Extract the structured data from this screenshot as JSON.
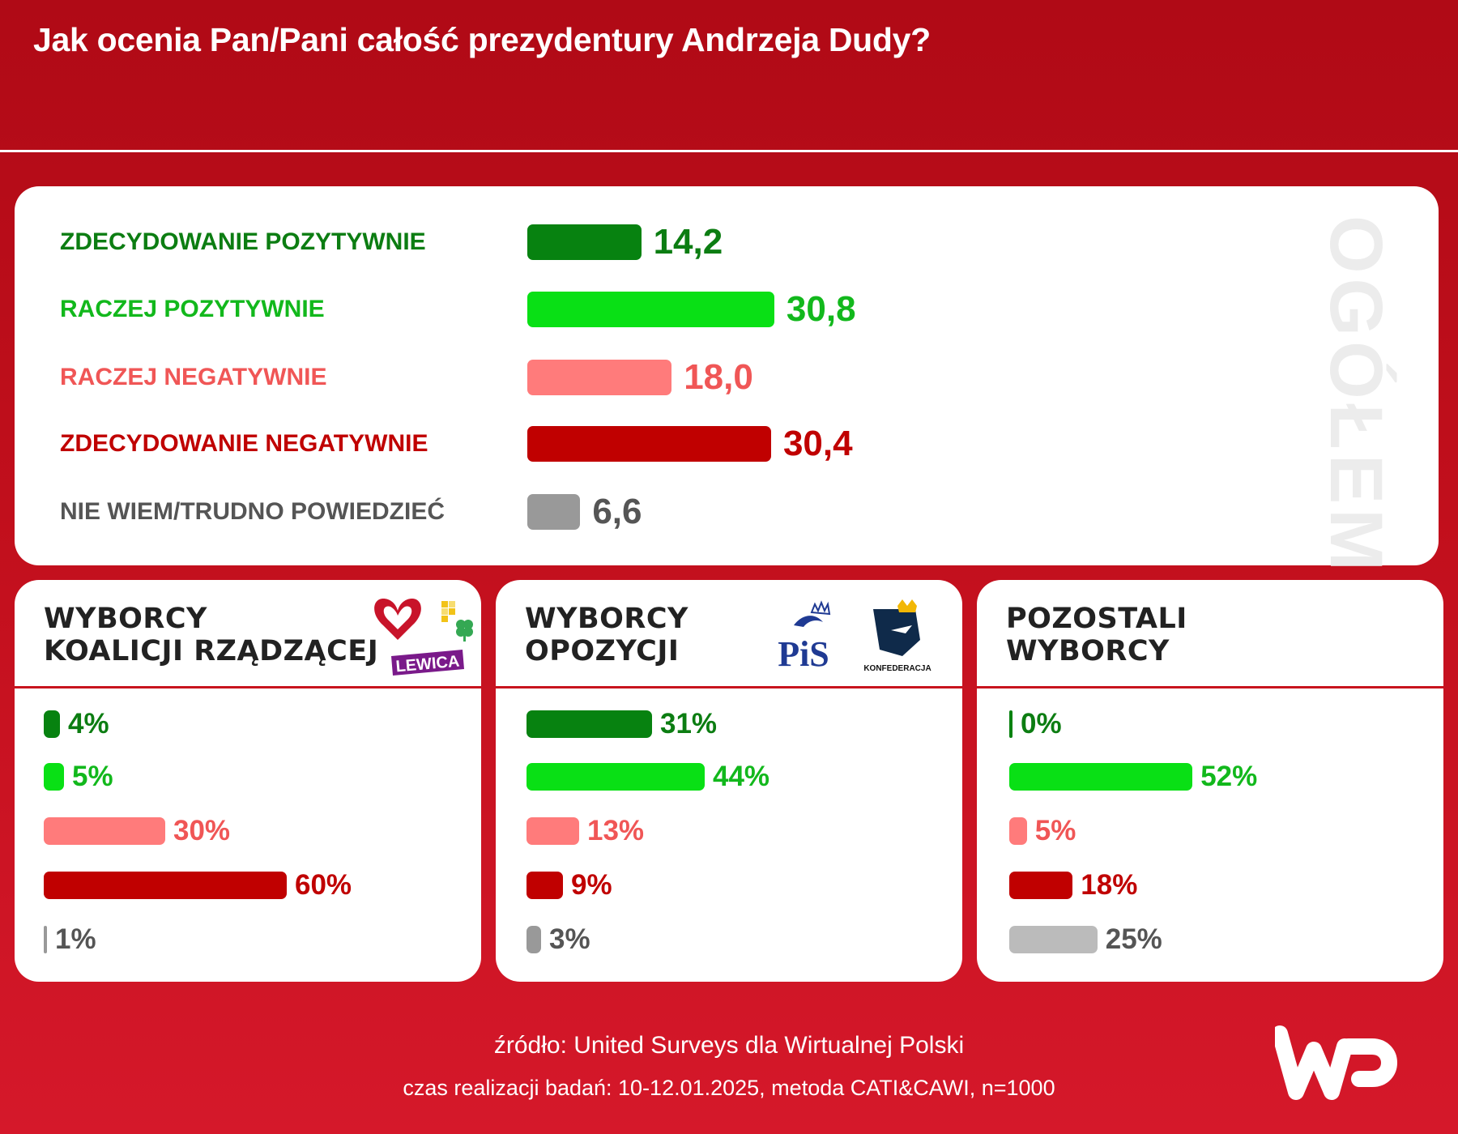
{
  "title": "Jak ocenia Pan/Pani całość prezydentury Andrzeja Dudy?",
  "overall_label": "OGÓŁEM",
  "colors": {
    "dark_green": "#078210",
    "light_green": "#09e015",
    "light_red": "#ff7b7b",
    "dark_red": "#c00000",
    "gray": "#999999",
    "light_gray": "#bbbbbb",
    "brand_red": "#c8141e"
  },
  "text_colors": {
    "dark_green": "#0c7d12",
    "light_green": "#12b81c",
    "light_red": "#f05656",
    "dark_red": "#c00000",
    "gray": "#555555"
  },
  "chart_data": [
    {
      "type": "bar",
      "orientation": "horizontal",
      "title": "OGÓŁEM",
      "categories": [
        "ZDECYDOWANIE POZYTYWNIE",
        "RACZEJ POZYTYWNIE",
        "RACZEJ NEGATYWNIE",
        "ZDECYDOWANIE NEGATYWNIE",
        "NIE WIEM/TRUDNO POWIEDZIEĆ"
      ],
      "values": [
        14.2,
        30.8,
        18.0,
        30.4,
        6.6
      ],
      "value_labels": [
        "14,2",
        "30,8",
        "18,0",
        "30,4",
        "6,6"
      ]
    },
    {
      "type": "bar",
      "orientation": "horizontal",
      "title": "WYBORCY KOALICJI RZĄDZĄCEJ",
      "categories": [
        "ZDECYDOWANIE POZYTYWNIE",
        "RACZEJ POZYTYWNIE",
        "RACZEJ NEGATYWNIE",
        "ZDECYDOWANIE NEGATYWNIE",
        "NIE WIEM/TRUDNO POWIEDZIEĆ"
      ],
      "values": [
        4,
        5,
        30,
        60,
        1
      ],
      "value_labels": [
        "4%",
        "5%",
        "30%",
        "60%",
        "1%"
      ]
    },
    {
      "type": "bar",
      "orientation": "horizontal",
      "title": "WYBORCY OPOZYCJI",
      "categories": [
        "ZDECYDOWANIE POZYTYWNIE",
        "RACZEJ POZYTYWNIE",
        "RACZEJ NEGATYWNIE",
        "ZDECYDOWANIE NEGATYWNIE",
        "NIE WIEM/TRUDNO POWIEDZIEĆ"
      ],
      "values": [
        31,
        44,
        13,
        9,
        3
      ],
      "value_labels": [
        "31%",
        "44%",
        "13%",
        "9%",
        "3%"
      ]
    },
    {
      "type": "bar",
      "orientation": "horizontal",
      "title": "POZOSTALI WYBORCY",
      "categories": [
        "ZDECYDOWANIE POZYTYWNIE",
        "RACZEJ POZYTYWNIE",
        "RACZEJ NEGATYWNIE",
        "ZDECYDOWANIE NEGATYWNIE",
        "NIE WIEM/TRUDNO POWIEDZIEĆ"
      ],
      "values": [
        0,
        52,
        5,
        18,
        25
      ],
      "value_labels": [
        "0%",
        "52%",
        "5%",
        "18%",
        "25%"
      ]
    }
  ],
  "panels": [
    {
      "title_lines": [
        "WYBORCY",
        "KOALICJI RZĄDZĄCEJ"
      ],
      "logos": [
        "heart-logo",
        "polska-2050-logo",
        "clover-logo",
        "lewica-logo"
      ],
      "logo_texts": {
        "lewica": "LEWICA"
      }
    },
    {
      "title_lines": [
        "WYBORCY",
        "OPOZYCJI"
      ],
      "logos": [
        "pis-logo",
        "konfederacja-logo"
      ],
      "logo_texts": {
        "pis": "PiS",
        "konfederacja": "KONFEDERACJA"
      }
    },
    {
      "title_lines": [
        "POZOSTALI",
        "WYBORCY"
      ],
      "logos": []
    }
  ],
  "footer": {
    "source": "źródło: United Surveys dla Wirtualnej Polski",
    "details": "czas realizacji badań: 10-12.01.2025, metoda CATI&CAWI, n=1000",
    "logo": "wp-logo"
  }
}
